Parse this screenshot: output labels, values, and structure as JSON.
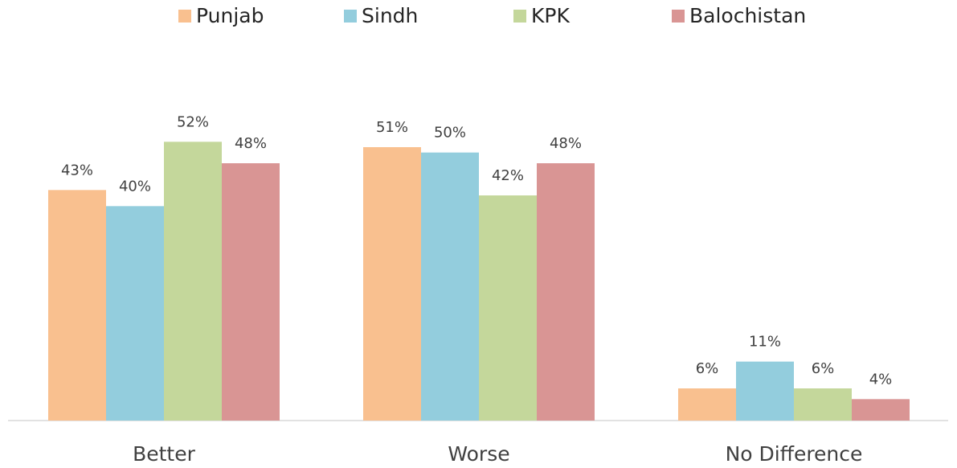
{
  "chart_data": {
    "type": "bar",
    "categories": [
      "Better",
      "Worse",
      "No Difference"
    ],
    "series": [
      {
        "name": "Punjab",
        "color": "#f9c08f",
        "values": [
          43,
          51,
          6
        ],
        "value_labels": [
          "43%",
          "51%",
          "6%"
        ]
      },
      {
        "name": "Sindh",
        "color": "#93cddd",
        "values": [
          40,
          50,
          11
        ],
        "value_labels": [
          "40%",
          "50%",
          "11%"
        ]
      },
      {
        "name": "KPK",
        "color": "#c4d79b",
        "values": [
          52,
          42,
          6
        ],
        "value_labels": [
          "52%",
          "42%",
          "6%"
        ]
      },
      {
        "name": "Balochistan",
        "color": "#d99594",
        "values": [
          48,
          48,
          4
        ],
        "value_labels": [
          "48%",
          "48%",
          "4%"
        ]
      }
    ],
    "ylim": [
      0,
      78
    ],
    "legend": "top"
  }
}
